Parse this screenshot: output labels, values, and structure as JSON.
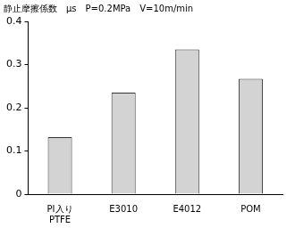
{
  "chart_data": {
    "type": "bar",
    "title": "静止摩擦係数　μs　P=0.2MPa　V=10m/min",
    "categories": [
      "PI入り\nPTFE",
      "E3010",
      "E4012",
      "POM"
    ],
    "values": [
      0.132,
      0.235,
      0.335,
      0.267
    ],
    "color": "#d3d3d3",
    "ylim": [
      0,
      0.4
    ],
    "yticks": [
      0,
      0.1,
      0.2,
      0.3,
      0.4
    ],
    "grid": false
  }
}
